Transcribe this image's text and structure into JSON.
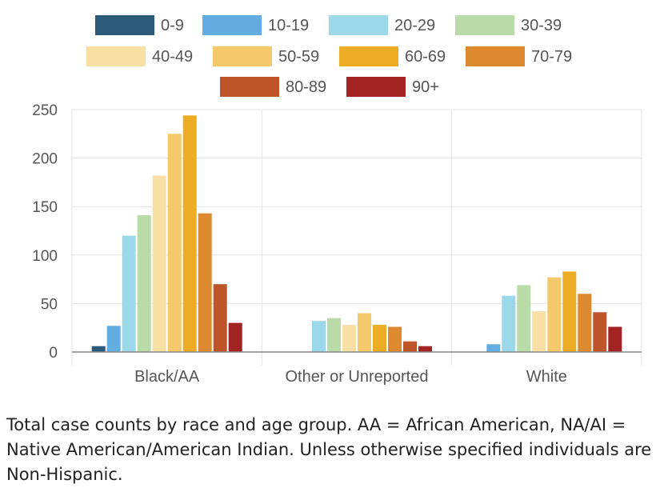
{
  "chart_data": {
    "type": "bar",
    "title": "",
    "xlabel": "",
    "ylabel": "",
    "ylim": [
      0,
      250
    ],
    "yticks": [
      0,
      50,
      100,
      150,
      200,
      250
    ],
    "grid": true,
    "legend_position": "top",
    "categories": [
      "Black/AA",
      "Other or Unreported",
      "White"
    ],
    "series": [
      {
        "name": "0-9",
        "color": "#2b5a7a",
        "values": [
          6,
          0,
          0
        ]
      },
      {
        "name": "10-19",
        "color": "#63ade0",
        "values": [
          27,
          0,
          8
        ]
      },
      {
        "name": "20-29",
        "color": "#9bd9ea",
        "values": [
          120,
          32,
          58
        ]
      },
      {
        "name": "30-39",
        "color": "#b8dba8",
        "values": [
          141,
          35,
          69
        ]
      },
      {
        "name": "40-49",
        "color": "#f8dfa3",
        "values": [
          182,
          28,
          42
        ]
      },
      {
        "name": "50-59",
        "color": "#f5c86b",
        "values": [
          225,
          40,
          77
        ]
      },
      {
        "name": "60-69",
        "color": "#ecac26",
        "values": [
          244,
          28,
          83
        ]
      },
      {
        "name": "70-79",
        "color": "#dc8930",
        "values": [
          143,
          26,
          60
        ]
      },
      {
        "name": "80-89",
        "color": "#be5429",
        "values": [
          70,
          11,
          41
        ]
      },
      {
        "name": "90+",
        "color": "#a22422",
        "values": [
          30,
          6,
          26
        ]
      }
    ]
  },
  "caption": "Total case counts by race and age group. AA = African American, NA/AI = Native American/American Indian. Unless otherwise specified individuals are Non-Hispanic."
}
